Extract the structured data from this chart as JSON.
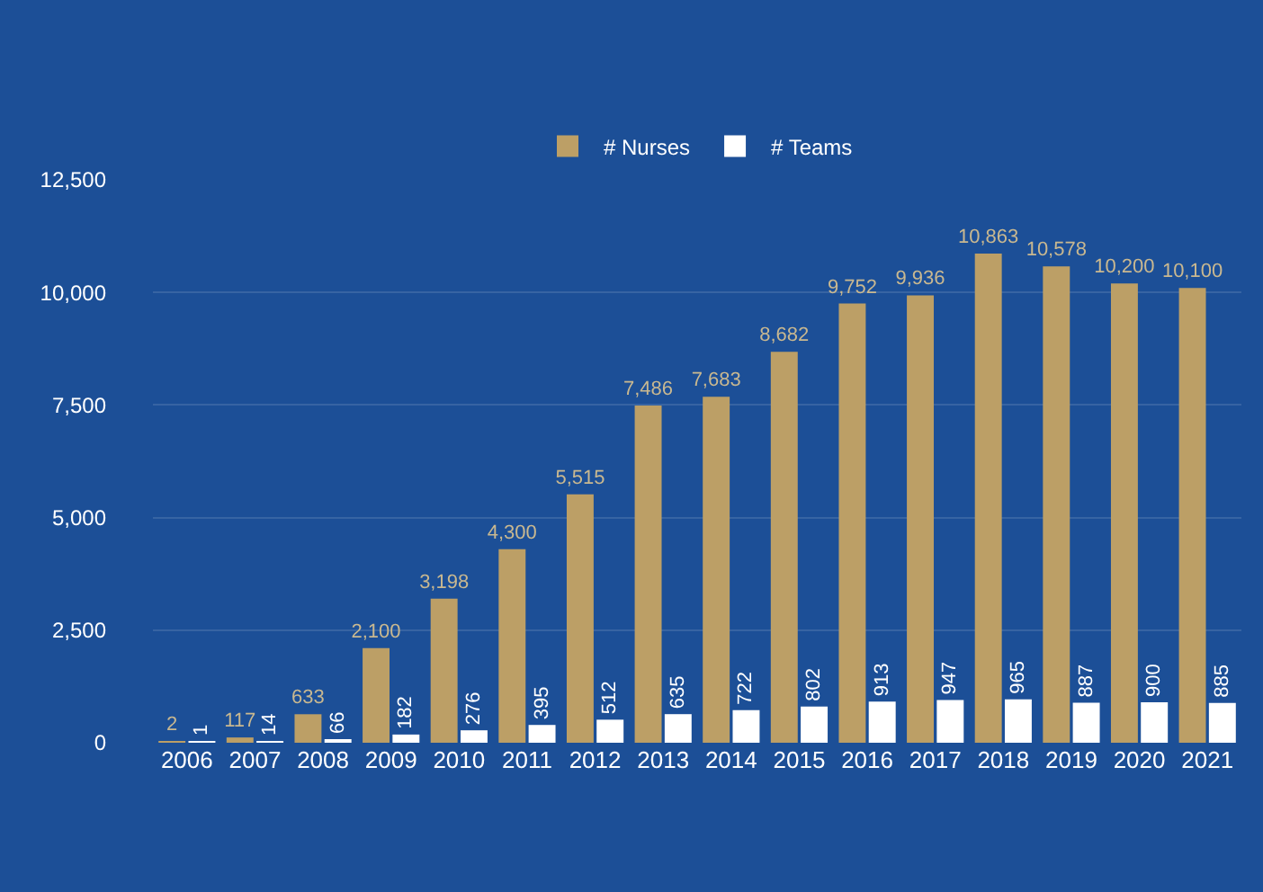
{
  "chart_data": {
    "type": "bar",
    "categories": [
      "2006",
      "2007",
      "2008",
      "2009",
      "2010",
      "2011",
      "2012",
      "2013",
      "2014",
      "2015",
      "2016",
      "2017",
      "2018",
      "2019",
      "2020",
      "2021"
    ],
    "series": [
      {
        "name": "# Nurses",
        "color": "#bc9f66",
        "values": [
          2,
          117,
          633,
          2100,
          3198,
          4300,
          5515,
          7486,
          7683,
          8682,
          9752,
          9936,
          10863,
          10578,
          10200,
          10100
        ],
        "value_labels": [
          "2",
          "117",
          "633",
          "2,100",
          "3,198",
          "4,300",
          "5,515",
          "7,486",
          "7,683",
          "8,682",
          "9,752",
          "9,936",
          "10,863",
          "10,578",
          "10,200",
          "10,100"
        ]
      },
      {
        "name": "# Teams",
        "color": "#ffffff",
        "values": [
          1,
          14,
          66,
          182,
          276,
          395,
          512,
          635,
          722,
          802,
          913,
          947,
          965,
          887,
          900,
          885
        ],
        "value_labels": [
          "1",
          "14",
          "66",
          "182",
          "276",
          "395",
          "512",
          "635",
          "722",
          "802",
          "913",
          "947",
          "965",
          "887",
          "900",
          "885"
        ]
      }
    ],
    "ylim": [
      0,
      12500
    ],
    "yticks": [
      {
        "value": 0,
        "label": "0"
      },
      {
        "value": 2500,
        "label": "2,500"
      },
      {
        "value": 5000,
        "label": "5,000"
      },
      {
        "value": 7500,
        "label": "7,500"
      },
      {
        "value": 10000,
        "label": "10,000"
      },
      {
        "value": 12500,
        "label": "12,500"
      }
    ],
    "grid": "y",
    "legend": "top"
  }
}
